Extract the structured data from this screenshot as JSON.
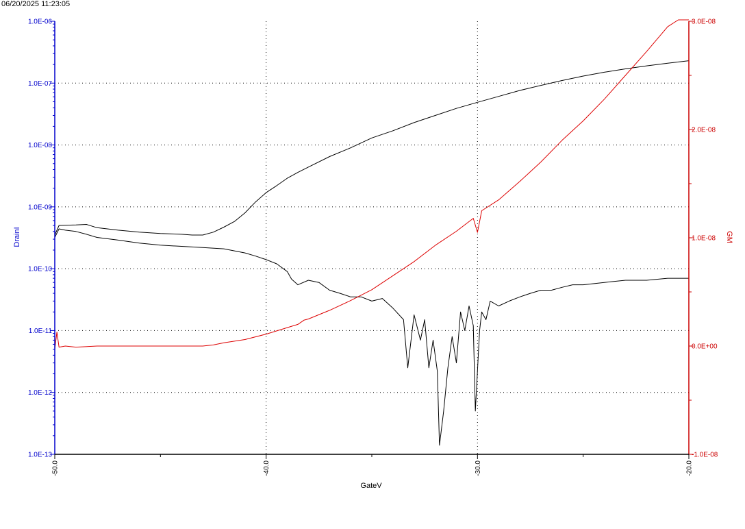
{
  "timestamp": "06/20/2025 11:23:05",
  "chart_data": {
    "type": "line",
    "xlabel": "GateV",
    "ylabel_left": "DrainI",
    "ylabel_right": "GM",
    "xlim": [
      -50,
      -20
    ],
    "x_ticks": [
      "-50.0",
      "-40.0",
      "-30.0",
      "-20.0"
    ],
    "y_left_scale": "log",
    "y_left_lim": [
      1e-13,
      1e-06
    ],
    "y_left_ticks": [
      "1.0E-06",
      "1.0E-07",
      "1.0E-08",
      "1.0E-09",
      "1.0E-10",
      "1.0E-11",
      "1.0E-12",
      "1.0E-13"
    ],
    "y_right_lim": [
      -1e-08,
      3e-08
    ],
    "y_right_ticks": [
      "3.0E-08",
      "2.0E-08",
      "1.0E-08",
      "0.0E+00",
      "-1.0E-08"
    ],
    "grid": true,
    "colors": {
      "left_axis": "#0000cc",
      "right_axis": "#cc0000",
      "drain_curves": "#000000",
      "gm_curve": "#dd0000"
    },
    "series": [
      {
        "axis": "left",
        "x": [
          -50,
          -49.8,
          -49,
          -48.5,
          -48,
          -47,
          -46,
          -45,
          -44,
          -43.5,
          -43,
          -42.5,
          -42,
          -41.5,
          -41,
          -40.5,
          -40,
          -39.5,
          -39,
          -38.5,
          -38,
          -37,
          -36,
          -35,
          -34,
          -33,
          -32,
          -31,
          -30,
          -29,
          -28,
          -27,
          -26,
          -25,
          -24,
          -23,
          -22,
          -21,
          -20
        ],
        "values": [
          3.5e-10,
          5e-10,
          5.1e-10,
          5.2e-10,
          4.6e-10,
          4.2e-10,
          3.9e-10,
          3.7e-10,
          3.6e-10,
          3.5e-10,
          3.5e-10,
          3.9e-10,
          4.7e-10,
          5.8e-10,
          8e-10,
          1.2e-09,
          1.7e-09,
          2.2e-09,
          2.9e-09,
          3.6e-09,
          4.4e-09,
          6.5e-09,
          9e-09,
          1.3e-08,
          1.7e-08,
          2.3e-08,
          3e-08,
          3.9e-08,
          4.9e-08,
          6.1e-08,
          7.6e-08,
          9.2e-08,
          1.1e-07,
          1.3e-07,
          1.5e-07,
          1.7e-07,
          1.9e-07,
          2.1e-07,
          2.3e-07
        ]
      },
      {
        "axis": "left",
        "x": [
          -50,
          -49.8,
          -49.5,
          -49,
          -48.5,
          -48,
          -47,
          -46,
          -45,
          -44,
          -43,
          -42,
          -41,
          -40.5,
          -40,
          -39.5,
          -39,
          -38.8,
          -38.5,
          -38,
          -37.5,
          -37,
          -36.5,
          -36,
          -35.5,
          -35,
          -34.5,
          -34,
          -33.5,
          -33.3,
          -33,
          -32.7,
          -32.5,
          -32.3,
          -32.1,
          -31.9,
          -31.8,
          -31.6,
          -31.4,
          -31.2,
          -31,
          -30.8,
          -30.6,
          -30.4,
          -30.2,
          -30.1,
          -29.9,
          -29.8,
          -29.6,
          -29.4,
          -29,
          -28.5,
          -28,
          -27.5,
          -27,
          -26.5,
          -26,
          -25.5,
          -25,
          -24,
          -23,
          -22,
          -21,
          -20
        ],
        "values": [
          3.2e-10,
          4.4e-10,
          4.2e-10,
          4e-10,
          3.6e-10,
          3.2e-10,
          2.9e-10,
          2.6e-10,
          2.4e-10,
          2.3e-10,
          2.2e-10,
          2.1e-10,
          1.8e-10,
          1.6e-10,
          1.4e-10,
          1.2e-10,
          9e-11,
          6.8e-11,
          5.5e-11,
          6.5e-11,
          6e-11,
          4.5e-11,
          4e-11,
          3.5e-11,
          3.5e-11,
          3e-11,
          3.3e-11,
          2.3e-11,
          1.5e-11,
          2.5e-12,
          1.8e-11,
          7e-12,
          1.5e-11,
          2.5e-12,
          7e-12,
          2.2e-12,
          1.4e-13,
          5e-13,
          2.5e-12,
          8e-12,
          3e-12,
          2e-11,
          1e-11,
          2.5e-11,
          1.2e-11,
          5e-13,
          1e-11,
          2e-11,
          1.5e-11,
          3e-11,
          2.5e-11,
          3e-11,
          3.5e-11,
          4e-11,
          4.5e-11,
          4.5e-11,
          5e-11,
          5.5e-11,
          5.5e-11,
          6e-11,
          6.5e-11,
          6.5e-11,
          7e-11,
          7e-11
        ]
      },
      {
        "axis": "right",
        "x": [
          -50,
          -49.9,
          -49.8,
          -49.5,
          -49,
          -48,
          -47,
          -46,
          -45,
          -44,
          -43,
          -42.5,
          -42,
          -41,
          -40,
          -39,
          -38.5,
          -38.2,
          -38,
          -37,
          -36,
          -35,
          -34,
          -33,
          -32,
          -31,
          -30.2,
          -30,
          -29.8,
          -29,
          -28,
          -27,
          -26,
          -25,
          -24,
          -23,
          -22,
          -21,
          -20.5,
          -20
        ],
        "values": [
          -3e-10,
          1.3e-09,
          -1e-10,
          0,
          -1e-10,
          0,
          0,
          0,
          0,
          0,
          0,
          1e-10,
          3e-10,
          6e-10,
          1.1e-09,
          1.7e-09,
          2e-09,
          2.4e-09,
          2.5e-09,
          3.3e-09,
          4.2e-09,
          5.2e-09,
          6.5e-09,
          7.8e-09,
          9.3e-09,
          1.06e-08,
          1.18e-08,
          1.05e-08,
          1.25e-08,
          1.35e-08,
          1.52e-08,
          1.7e-08,
          1.9e-08,
          2.08e-08,
          2.28e-08,
          2.5e-08,
          2.72e-08,
          2.95e-08,
          3.12e-08,
          3.3e-08
        ]
      }
    ]
  }
}
